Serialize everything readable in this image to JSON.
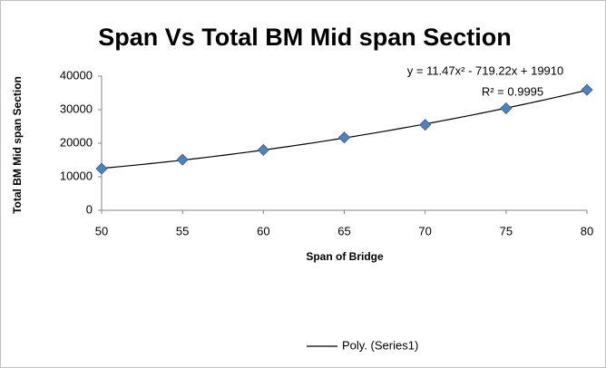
{
  "chart_data": {
    "type": "scatter",
    "title": "Span Vs Total BM Mid span Section",
    "x_label": "Span of Bridge",
    "y_label": "Total BM Mid span Section",
    "x": [
      50,
      55,
      60,
      65,
      70,
      75,
      80
    ],
    "series": [
      {
        "name": "Series1",
        "color": "#4f81bd",
        "values": [
          12400,
          15100,
          18000,
          21700,
          25500,
          30400,
          35900
        ]
      }
    ],
    "trendline": {
      "name": "Poly. (Series1)",
      "equation": "y = 11.47x² - 719.22x + 19910",
      "r_squared": "R² = 0.9995",
      "color": "#000000"
    },
    "xlim": [
      50,
      80
    ],
    "xticks": [
      50,
      55,
      60,
      65,
      70,
      75,
      80
    ],
    "ylim": [
      0,
      40000
    ],
    "yticks": [
      0,
      10000,
      20000,
      30000,
      40000
    ],
    "grid": false
  }
}
